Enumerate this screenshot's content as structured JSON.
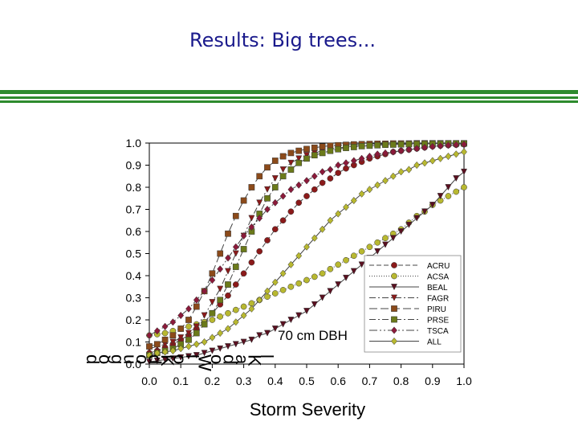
{
  "slide": {
    "title": "Results:  Big trees..."
  },
  "chart_data": {
    "type": "line",
    "title": "",
    "annotation": "70 cm DBH",
    "xlabel": "Storm Severity",
    "ylabel": "",
    "ylabel_garbled_chars": [
      "d",
      "o",
      "g",
      "u",
      "o",
      "d",
      "K",
      "o",
      "l",
      "W",
      "o",
      "d",
      "a",
      "K",
      "l"
    ],
    "xlim": [
      0,
      1.0
    ],
    "ylim": [
      0,
      1.0
    ],
    "x_ticks": [
      "0.0",
      "0.1",
      "0.2",
      "0.3",
      "0.4",
      "0.5",
      "0.6",
      "0.7",
      "0.8",
      "0.9",
      "1.0"
    ],
    "y_ticks": [
      "0.0",
      "0.1",
      "0.2",
      "0.3",
      "0.4",
      "0.5",
      "0.6",
      "0.7",
      "0.8",
      "0.9",
      "1.0"
    ],
    "grid": false,
    "legend_position": "bottom-right",
    "x": [
      0.0,
      0.025,
      0.05,
      0.075,
      0.1,
      0.125,
      0.15,
      0.175,
      0.2,
      0.225,
      0.25,
      0.275,
      0.3,
      0.325,
      0.35,
      0.375,
      0.4,
      0.425,
      0.45,
      0.475,
      0.5,
      0.525,
      0.55,
      0.575,
      0.6,
      0.625,
      0.65,
      0.675,
      0.7,
      0.725,
      0.75,
      0.775,
      0.8,
      0.825,
      0.85,
      0.875,
      0.9,
      0.925,
      0.95,
      0.975,
      1.0
    ],
    "series": [
      {
        "name": "ACRU",
        "color": "#8b1a1a",
        "marker": "circle",
        "dash": "6,3",
        "values": [
          0.05,
          0.06,
          0.075,
          0.09,
          0.11,
          0.13,
          0.16,
          0.19,
          0.23,
          0.27,
          0.31,
          0.36,
          0.41,
          0.46,
          0.51,
          0.56,
          0.61,
          0.65,
          0.69,
          0.73,
          0.76,
          0.79,
          0.82,
          0.84,
          0.865,
          0.885,
          0.9,
          0.915,
          0.93,
          0.94,
          0.95,
          0.96,
          0.965,
          0.97,
          0.975,
          0.98,
          0.985,
          0.988,
          0.99,
          0.992,
          0.994
        ]
      },
      {
        "name": "ACSA",
        "color": "#b8b830",
        "marker": "circle",
        "dash": "1,2",
        "values": [
          0.13,
          0.135,
          0.14,
          0.15,
          0.16,
          0.17,
          0.18,
          0.19,
          0.2,
          0.215,
          0.23,
          0.245,
          0.26,
          0.275,
          0.29,
          0.305,
          0.32,
          0.335,
          0.35,
          0.365,
          0.38,
          0.395,
          0.41,
          0.43,
          0.45,
          0.47,
          0.49,
          0.51,
          0.53,
          0.55,
          0.57,
          0.59,
          0.61,
          0.64,
          0.67,
          0.69,
          0.72,
          0.74,
          0.76,
          0.78,
          0.8
        ]
      },
      {
        "name": "BEAL",
        "color": "#5a1020",
        "marker": "triangle-down",
        "dash": "",
        "values": [
          0.01,
          0.015,
          0.02,
          0.025,
          0.03,
          0.035,
          0.04,
          0.05,
          0.06,
          0.07,
          0.08,
          0.09,
          0.1,
          0.11,
          0.13,
          0.14,
          0.16,
          0.18,
          0.2,
          0.22,
          0.24,
          0.27,
          0.3,
          0.33,
          0.36,
          0.39,
          0.42,
          0.45,
          0.48,
          0.51,
          0.54,
          0.57,
          0.6,
          0.63,
          0.66,
          0.69,
          0.72,
          0.76,
          0.8,
          0.84,
          0.87
        ]
      },
      {
        "name": "FAGR",
        "color": "#8b1a1a",
        "marker": "triangle-down",
        "dash": "8,3,2,3",
        "values": [
          0.07,
          0.08,
          0.09,
          0.1,
          0.12,
          0.14,
          0.17,
          0.22,
          0.28,
          0.34,
          0.42,
          0.5,
          0.58,
          0.66,
          0.73,
          0.79,
          0.84,
          0.88,
          0.91,
          0.93,
          0.945,
          0.955,
          0.965,
          0.972,
          0.978,
          0.982,
          0.986,
          0.988,
          0.99,
          0.992,
          0.993,
          0.994,
          0.995,
          0.996,
          0.996,
          0.997,
          0.997,
          0.998,
          0.998,
          0.998,
          0.998
        ]
      },
      {
        "name": "PIRU",
        "color": "#8b4a1a",
        "marker": "square",
        "dash": "10,4",
        "values": [
          0.08,
          0.09,
          0.11,
          0.13,
          0.16,
          0.2,
          0.26,
          0.33,
          0.41,
          0.5,
          0.59,
          0.67,
          0.74,
          0.8,
          0.85,
          0.89,
          0.92,
          0.94,
          0.955,
          0.965,
          0.973,
          0.979,
          0.984,
          0.988,
          0.99,
          0.992,
          0.994,
          0.995,
          0.996,
          0.997,
          0.997,
          0.998,
          0.998,
          0.998,
          0.999,
          0.999,
          0.999,
          0.999,
          0.999,
          0.999,
          0.999
        ]
      },
      {
        "name": "PRSE",
        "color": "#6b7a1a",
        "marker": "square",
        "dash": "8,3,2,3",
        "values": [
          0.04,
          0.05,
          0.06,
          0.07,
          0.09,
          0.11,
          0.14,
          0.18,
          0.23,
          0.29,
          0.36,
          0.44,
          0.52,
          0.6,
          0.68,
          0.75,
          0.8,
          0.85,
          0.88,
          0.91,
          0.93,
          0.945,
          0.955,
          0.965,
          0.972,
          0.978,
          0.982,
          0.986,
          0.988,
          0.99,
          0.992,
          0.993,
          0.994,
          0.995,
          0.996,
          0.996,
          0.997,
          0.997,
          0.998,
          0.998,
          0.998
        ]
      },
      {
        "name": "TSCA",
        "color": "#8b1a3a",
        "marker": "diamond",
        "dash": "10,3,2,3,2,3",
        "values": [
          0.13,
          0.15,
          0.17,
          0.19,
          0.22,
          0.25,
          0.29,
          0.33,
          0.38,
          0.43,
          0.48,
          0.53,
          0.58,
          0.62,
          0.66,
          0.7,
          0.73,
          0.76,
          0.79,
          0.81,
          0.83,
          0.85,
          0.87,
          0.88,
          0.9,
          0.91,
          0.92,
          0.93,
          0.94,
          0.95,
          0.955,
          0.96,
          0.965,
          0.97,
          0.975,
          0.98,
          0.984,
          0.987,
          0.99,
          0.992,
          0.994
        ]
      },
      {
        "name": "ALL",
        "color": "#b8b830",
        "marker": "diamond",
        "dash": "",
        "values": [
          0.04,
          0.05,
          0.055,
          0.06,
          0.07,
          0.08,
          0.09,
          0.1,
          0.12,
          0.14,
          0.16,
          0.19,
          0.22,
          0.25,
          0.29,
          0.33,
          0.37,
          0.41,
          0.45,
          0.49,
          0.53,
          0.57,
          0.61,
          0.65,
          0.68,
          0.71,
          0.74,
          0.77,
          0.79,
          0.81,
          0.83,
          0.85,
          0.87,
          0.88,
          0.9,
          0.91,
          0.92,
          0.93,
          0.94,
          0.95,
          0.96
        ]
      }
    ]
  }
}
